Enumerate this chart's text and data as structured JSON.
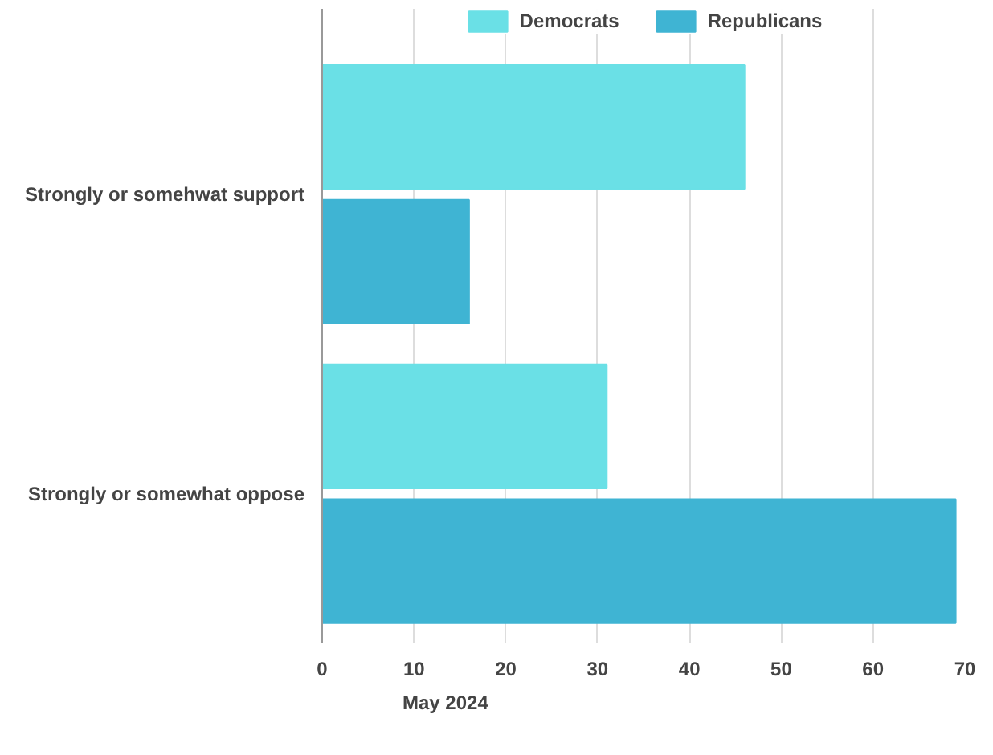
{
  "chart_data": {
    "type": "bar",
    "orientation": "horizontal",
    "categories": [
      "Strongly or somehwat support",
      "Strongly or somewhat oppose"
    ],
    "series": [
      {
        "name": "Democrats",
        "color": "#6ae0e6",
        "values": [
          46,
          31
        ]
      },
      {
        "name": "Republicans",
        "color": "#3fb4d3",
        "values": [
          16,
          69
        ]
      }
    ],
    "xlim": [
      0,
      70
    ],
    "xticks": [
      0,
      10,
      20,
      30,
      40,
      50,
      60,
      70
    ],
    "grid": "x",
    "legend": "top",
    "annotations": [
      "May 2024"
    ]
  }
}
